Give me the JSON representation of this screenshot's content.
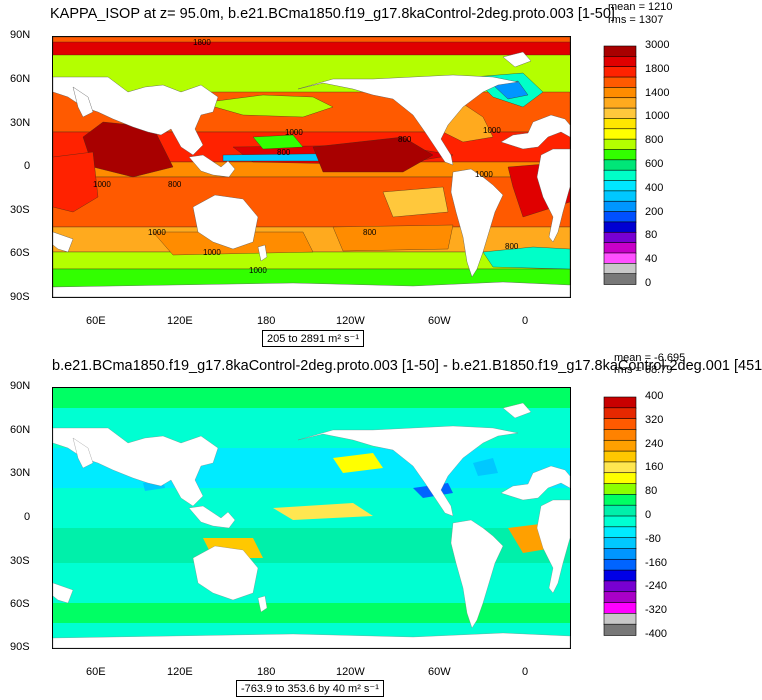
{
  "panels": [
    {
      "id": "top",
      "title": "KAPPA_ISOP at z=  95.0m, b.e21.BCma1850.f19_g17.8kaControl-2deg.proto.003 [1-50]",
      "stats": [
        "mean = 1210",
        "rms = 1307"
      ],
      "range_label": "205 to 2891 m² s⁻¹",
      "lat_ticks": [
        "90N",
        "60N",
        "30N",
        "0",
        "30S",
        "60S",
        "90S"
      ],
      "lon_ticks": [
        "60E",
        "120E",
        "180",
        "120W",
        "60W",
        "0"
      ],
      "colorbar": {
        "labels": [
          "3000",
          "1800",
          "1400",
          "1000",
          "800",
          "600",
          "400",
          "200",
          "80",
          "40",
          "0"
        ],
        "colors": [
          "#a80000",
          "#e00000",
          "#ff2200",
          "#ff5a00",
          "#ff8c00",
          "#ffaa1e",
          "#ffc83c",
          "#ffe600",
          "#ffff00",
          "#b4ff00",
          "#32ff00",
          "#00e678",
          "#00ffc8",
          "#00e6ff",
          "#00c8ff",
          "#0096ff",
          "#0050ff",
          "#0000d2",
          "#7800d2",
          "#c800c8",
          "#ff50ff",
          "#c8c8c8",
          "#787878"
        ]
      },
      "contour_labels": [
        "1800",
        "800",
        "1000",
        "1000",
        "1000",
        "1000",
        "1000",
        "800",
        "800",
        "1000",
        "1000",
        "800",
        "800"
      ]
    },
    {
      "id": "bottom",
      "title": "b.e21.BCma1850.f19_g17.8kaControl-2deg.proto.003 [1-50] - b.e21.B1850.f19_g17.8kaControl-2deg.001 [451",
      "stats": [
        "mean = -6.695",
        "rms = 68.79"
      ],
      "range_label": "-763.9 to 353.6 by 40 m² s⁻¹",
      "lat_ticks": [
        "90N",
        "60N",
        "30N",
        "0",
        "30S",
        "60S",
        "90S"
      ],
      "lon_ticks": [
        "60E",
        "120E",
        "180",
        "120W",
        "60W",
        "0"
      ],
      "colorbar": {
        "labels": [
          "400",
          "320",
          "240",
          "160",
          "80",
          "0",
          "-80",
          "-160",
          "-240",
          "-320",
          "-400"
        ],
        "colors": [
          "#c80000",
          "#e62800",
          "#ff5a00",
          "#ff8200",
          "#ffa000",
          "#ffc800",
          "#ffe650",
          "#ffff00",
          "#8cff00",
          "#00ff64",
          "#00f0aa",
          "#00ffd2",
          "#00ebff",
          "#00c8ff",
          "#0096ff",
          "#0064ff",
          "#0000e6",
          "#7800d2",
          "#aa00c8",
          "#ff00ff",
          "#c8c8c8",
          "#787878"
        ]
      }
    }
  ],
  "colors": {
    "land": "#ffffff",
    "frame": "#000000"
  }
}
